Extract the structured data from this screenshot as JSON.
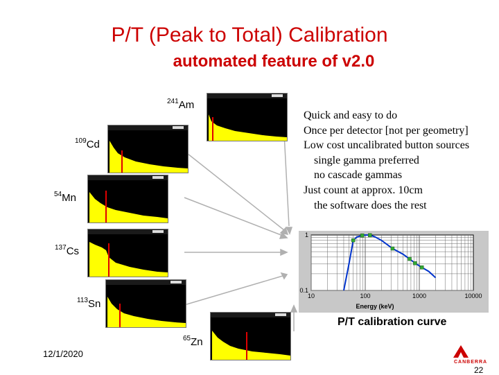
{
  "title": "P/T (Peak to Total) Calibration",
  "subtitle": "automated feature of v2.0",
  "bullets": [
    "Quick and easy to do",
    "Once per detector [not per geometry]",
    "Low cost uncalibrated button sources",
    "single gamma preferred",
    "no cascade gammas",
    "Just count at approx. 10cm",
    "the software does the rest"
  ],
  "isotopes": [
    {
      "mass": "241",
      "symbol": "Am"
    },
    {
      "mass": "109",
      "symbol": "Cd"
    },
    {
      "mass": "54",
      "symbol": "Mn"
    },
    {
      "mass": "137",
      "symbol": "Cs"
    },
    {
      "mass": "113",
      "symbol": "Sn"
    },
    {
      "mass": "65",
      "symbol": "Zn"
    }
  ],
  "colors": {
    "title": "#cc0000",
    "spectrum": "#ffff00",
    "peak": "#e00000",
    "curve": "#0033cc",
    "points": "#33aa33"
  },
  "chart_data": {
    "type": "line",
    "title": "",
    "xlabel": "Energy (keV)",
    "ylabel": "",
    "x_scale": "log",
    "y_scale": "log",
    "xlim": [
      10,
      10000
    ],
    "ylim": [
      0.1,
      1
    ],
    "x_ticks": [
      "10",
      "100",
      "1000",
      "10000"
    ],
    "y_ticks": [
      "1",
      "0.1"
    ],
    "series": [
      {
        "type": "scatter",
        "x": [
          60,
          88,
          122,
          320,
          662,
          835,
          1115
        ],
        "y": [
          0.8,
          0.98,
          0.99,
          0.57,
          0.37,
          0.31,
          0.26
        ]
      },
      {
        "type": "line",
        "x": [
          40,
          50,
          60,
          70,
          88,
          100,
          122,
          150,
          200,
          320,
          500,
          662,
          835,
          1115,
          1500,
          2000
        ],
        "y": [
          0.1,
          0.3,
          0.8,
          0.92,
          0.98,
          1.0,
          0.99,
          0.93,
          0.8,
          0.57,
          0.45,
          0.37,
          0.31,
          0.26,
          0.22,
          0.17
        ]
      }
    ]
  },
  "caption": "P/T calibration curve",
  "date": "12/1/2020",
  "page_number": "22",
  "logo_text": "CANBERRA"
}
